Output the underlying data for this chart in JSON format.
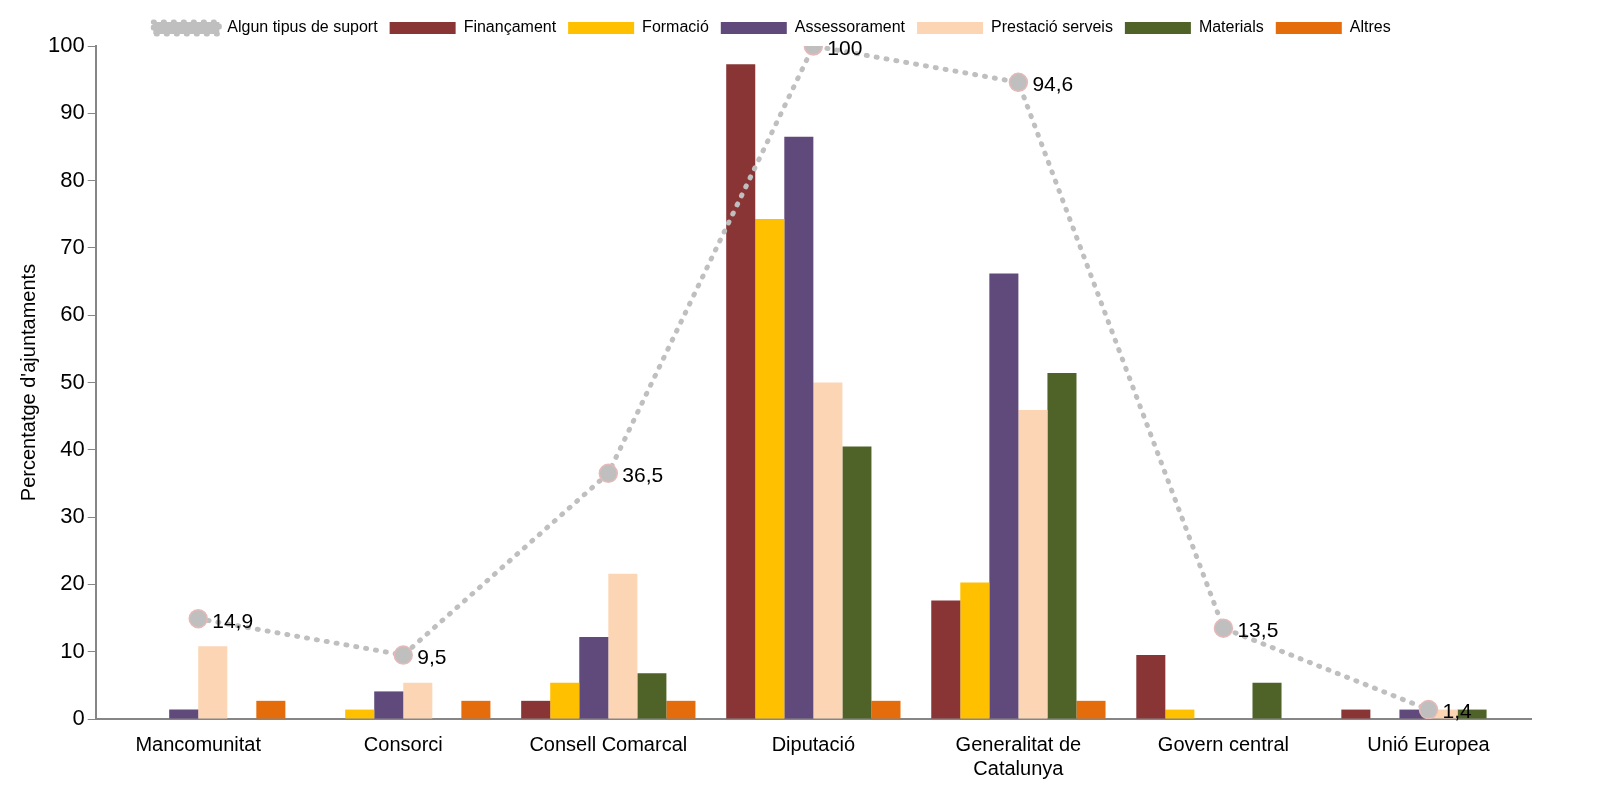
{
  "chart_data": {
    "type": "bar",
    "ylabel": "Percentatge d'ajuntaments",
    "categories": [
      "Mancomunitat",
      "Consorci",
      "Consell Comarcal",
      "Diputació",
      "Generalitat de Catalunya",
      "Govern central",
      "Unió Europea"
    ],
    "series": [
      {
        "name": "Finançament",
        "color": "#893535",
        "values": [
          0,
          0,
          2.7,
          97.3,
          17.6,
          9.5,
          1.4
        ]
      },
      {
        "name": "Formació",
        "color": "#ffc000",
        "values": [
          0,
          1.4,
          5.4,
          74.3,
          20.3,
          1.4,
          0
        ]
      },
      {
        "name": "Assessorament",
        "color": "#604a7b",
        "values": [
          1.4,
          4.1,
          12.2,
          86.5,
          66.2,
          0,
          1.4
        ]
      },
      {
        "name": "Prestació serveis",
        "color": "#fcd5b5",
        "values": [
          10.8,
          5.4,
          21.6,
          50,
          45.9,
          0,
          1.4
        ]
      },
      {
        "name": "Materials",
        "color": "#4f6228",
        "values": [
          0,
          0,
          6.8,
          40.5,
          51.4,
          5.4,
          1.4
        ]
      },
      {
        "name": "Altres",
        "color": "#e46c0a",
        "values": [
          2.7,
          2.7,
          2.7,
          2.7,
          2.7,
          0,
          0
        ]
      },
      {
        "name": "Algun tipus de suport",
        "type": "line",
        "color": "#bfbfbf",
        "line_style": "dotted",
        "marker": "circle",
        "values": [
          14.9,
          9.5,
          36.5,
          100,
          94.6,
          13.5,
          1.4
        ],
        "value_labels": [
          "14,9",
          "9,5",
          "36,5",
          "100",
          "94,6",
          "13,5",
          "1,4"
        ]
      }
    ],
    "ylim": [
      0,
      100
    ],
    "yticks": [
      0,
      10,
      20,
      30,
      40,
      50,
      60,
      70,
      80,
      90,
      100
    ],
    "grid": false,
    "legend": "top"
  }
}
